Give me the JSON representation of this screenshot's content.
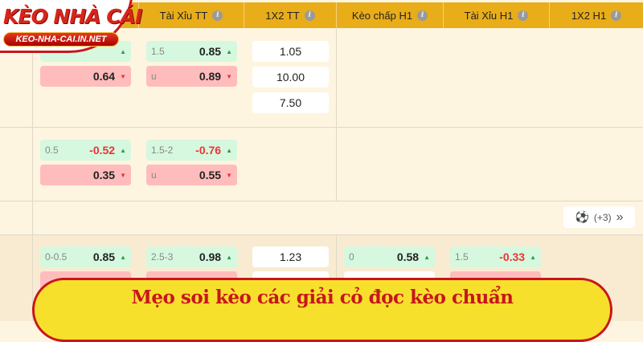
{
  "logo": {
    "title": "KÈO NHÀ CÁI",
    "subtitle": "KEO-NHA-CAI.IN.NET"
  },
  "headers": [
    "Tài Xỉu TT",
    "1X2 TT",
    "Kèo chấp H1",
    "Tài Xỉu H1",
    "1X2 H1"
  ],
  "info_icon": "i",
  "rows": [
    {
      "hcap": [
        {
          "line": "",
          "value": "",
          "dir": "up"
        },
        {
          "line": "",
          "value": "0.64",
          "dir": "down"
        }
      ],
      "ou": [
        {
          "line": "1.5",
          "value": "0.85",
          "dir": "up"
        },
        {
          "line": "u",
          "value": "0.89",
          "dir": "down"
        }
      ],
      "x12": [
        "1.05",
        "10.00",
        "7.50"
      ]
    },
    {
      "hcap": [
        {
          "line": "0.5",
          "value": "-0.52",
          "dir": "up"
        },
        {
          "line": "",
          "value": "0.35",
          "dir": "down"
        }
      ],
      "ou": [
        {
          "line": "1.5-2",
          "value": "-0.76",
          "dir": "up"
        },
        {
          "line": "u",
          "value": "0.55",
          "dir": "down"
        }
      ]
    },
    {
      "hcap": [
        {
          "line": "0-0.5",
          "value": "0.85",
          "dir": "up"
        }
      ],
      "ou": [
        {
          "line": "2.5-3",
          "value": "0.98",
          "dir": "up"
        }
      ],
      "x12": [
        "1.23"
      ],
      "h1hcap": [
        {
          "line": "0",
          "value": "0.58",
          "dir": "up"
        }
      ],
      "h1ou": [
        {
          "line": "1.5",
          "value": "-0.33",
          "dir": "up"
        }
      ]
    }
  ],
  "more_button": {
    "label": "(+3)",
    "icon": "soccer-ball-icon",
    "chevron": "»"
  },
  "banner": "Mẹo soi kèo các giải cỏ đọc kèo chuẩn"
}
